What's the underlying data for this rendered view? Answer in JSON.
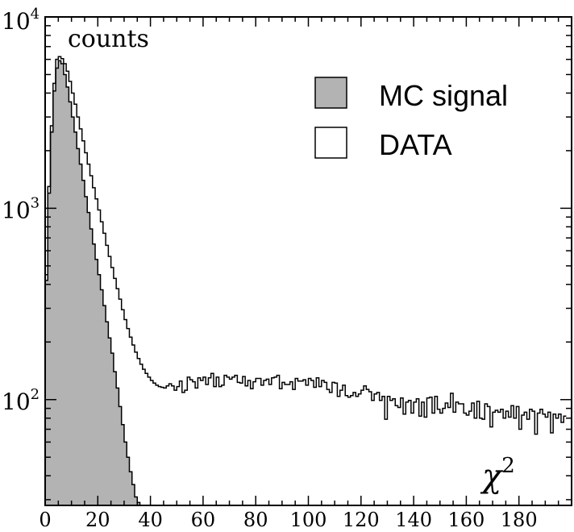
{
  "chart_data": {
    "type": "histogram",
    "title": "",
    "ylabel": "counts",
    "xlabel": "χ²",
    "x_axis_label_main": "χ",
    "x_axis_label_sup": "2",
    "xlim": [
      0,
      200
    ],
    "ylim": [
      28,
      10000
    ],
    "yscale": "log",
    "bin_width": 1,
    "x_ticks": [
      0,
      20,
      40,
      60,
      80,
      100,
      120,
      140,
      160,
      180
    ],
    "x_tick_labels": [
      "0",
      "20",
      "40",
      "60",
      "80",
      "100",
      "120",
      "140",
      "160",
      "180"
    ],
    "y_tick_labels": [
      {
        "value": 100,
        "base": "10",
        "exp": "2"
      },
      {
        "value": 1000,
        "base": "10",
        "exp": "3"
      },
      {
        "value": 10000,
        "base": "10",
        "exp": "4"
      }
    ],
    "legend_position": "top-right",
    "legend": [
      {
        "label": "MC signal",
        "fill": "#b3b3b3"
      },
      {
        "label": "DATA",
        "fill": "#ffffff"
      }
    ],
    "series": [
      {
        "name": "MC signal",
        "style": "filled",
        "fill": "#b3b3b3",
        "x_start": 0,
        "values": [
          420,
          1200,
          2500,
          4100,
          5400,
          5900,
          5700,
          5000,
          4300,
          3600,
          3000,
          2500,
          2050,
          1700,
          1400,
          1150,
          950,
          780,
          650,
          540,
          450,
          375,
          310,
          255,
          210,
          175,
          140,
          115,
          92,
          74,
          60,
          50,
          42,
          36,
          31,
          29
        ]
      },
      {
        "name": "DATA",
        "style": "step",
        "stroke": "#000000",
        "x_start": 0,
        "values": [
          450,
          1300,
          2700,
          4500,
          6000,
          6200,
          6050,
          5700,
          5200,
          4600,
          4000,
          3500,
          3000,
          2600,
          2250,
          1950,
          1700,
          1480,
          1280,
          1120,
          980,
          850,
          740,
          640,
          560,
          490,
          430,
          380,
          335,
          295,
          262,
          235,
          212,
          193,
          177,
          164,
          153,
          144,
          137,
          131,
          126,
          122,
          119,
          117,
          116,
          115,
          118,
          121,
          118,
          112,
          117,
          125,
          109,
          112,
          131,
          127,
          124,
          115,
          130,
          126,
          131,
          120,
          130,
          137,
          117,
          131,
          117,
          119,
          134,
          131,
          128,
          131,
          134,
          123,
          122,
          132,
          118,
          126,
          114,
          124,
          129,
          129,
          119,
          126,
          128,
          120,
          130,
          131,
          134,
          114,
          123,
          120,
          120,
          124,
          113,
          129,
          125,
          125,
          127,
          119,
          129,
          126,
          116,
          130,
          117,
          126,
          123,
          113,
          109,
          123,
          122,
          104,
          112,
          119,
          105,
          103,
          105,
          109,
          104,
          107,
          112,
          118,
          113,
          110,
          99,
          107,
          109,
          99,
          104,
          79,
          104,
          99,
          101,
          93,
          91,
          102,
          84,
          97,
          99,
          85,
          97,
          101,
          82,
          97,
          81,
          102,
          103,
          85,
          104,
          89,
          85,
          90,
          96,
          91,
          108,
          86,
          97,
          95,
          95,
          85,
          83,
          87,
          96,
          80,
          98,
          80,
          79,
          95,
          92,
          72,
          86,
          88,
          86,
          89,
          80,
          87,
          81,
          93,
          80,
          92,
          70,
          83,
          86,
          79,
          89,
          87,
          66,
          85,
          89,
          84,
          81,
          86,
          67,
          84,
          80,
          84,
          76,
          82
        ]
      }
    ]
  }
}
